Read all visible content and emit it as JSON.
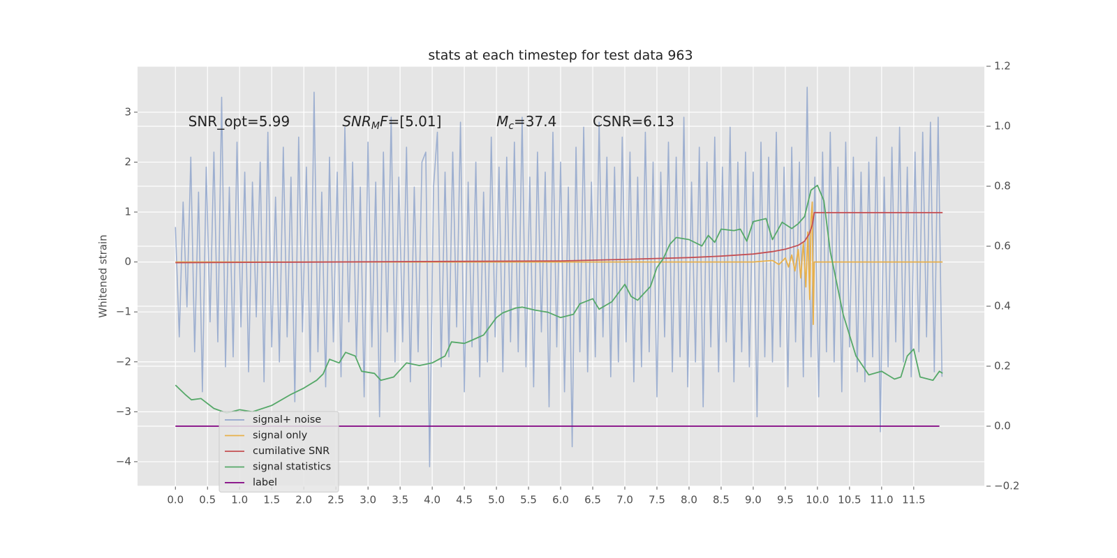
{
  "chart_data": {
    "type": "line",
    "title": "stats at each timestep for test data 963",
    "y_label": "Whitened strain",
    "annotations": [
      [
        {
          "text": "SNR_opt=5.99"
        }
      ],
      [
        {
          "text": "SNR",
          "italic": true
        },
        {
          "text": "M",
          "italic": true,
          "sub": true
        },
        {
          "text": "F",
          "italic": true
        },
        {
          "text": "=[5.01]"
        }
      ],
      [
        {
          "text": "M",
          "italic": true
        },
        {
          "text": "c",
          "italic": true,
          "sub": true
        },
        {
          "text": "=37.4"
        }
      ],
      [
        {
          "text": "CSNR=6.13"
        }
      ]
    ],
    "xlim": [
      -0.59,
      12.6
    ],
    "xticks": [
      {
        "value": 0,
        "label": "0.0"
      },
      0.5,
      {
        "value": 1,
        "label": "1.0"
      },
      1.5,
      {
        "value": 2,
        "label": "2.0"
      },
      2.5,
      {
        "value": 3,
        "label": "3.0"
      },
      3.5,
      {
        "value": 4,
        "label": "4.0"
      },
      4.5,
      {
        "value": 5,
        "label": "5.0"
      },
      5.5,
      {
        "value": 6,
        "label": "6.0"
      },
      6.5,
      {
        "value": 7,
        "label": "7.0"
      },
      7.5,
      {
        "value": 8,
        "label": "8.0"
      },
      8.5,
      {
        "value": 9,
        "label": "9.0"
      },
      9.5,
      {
        "value": 10,
        "label": "10.0"
      },
      10.5,
      {
        "value": 11,
        "label": "11.0"
      },
      11.5
    ],
    "ylim": [
      -4.49,
      3.92
    ],
    "yticks": [
      {
        "value": -4,
        "label": "−4"
      },
      {
        "value": -3,
        "label": "−3"
      },
      {
        "value": -2,
        "label": "−2"
      },
      {
        "value": -1,
        "label": "−1"
      },
      0,
      1,
      2,
      3
    ],
    "y2lim": [
      -0.2,
      1.2
    ],
    "y2ticks": [
      {
        "value": -0.2,
        "label": "−0.2"
      },
      {
        "value": 0,
        "label": "0.0"
      },
      0.2,
      0.4,
      0.6,
      0.8,
      {
        "value": 1,
        "label": "1.0"
      },
      1.2
    ],
    "grid": true,
    "legend": "lower left",
    "series": [
      {
        "name": "signal+ noise",
        "color": "#91a6cc",
        "x": [
          0,
          0.06,
          0.12,
          0.18,
          0.24,
          0.3,
          0.36,
          0.42,
          0.48,
          0.54,
          0.6,
          0.66,
          0.72,
          0.78,
          0.84,
          0.9,
          0.96,
          1.02,
          1.08,
          1.14,
          1.2,
          1.26,
          1.32,
          1.38,
          1.44,
          1.5,
          1.56,
          1.62,
          1.68,
          1.74,
          1.8,
          1.86,
          1.92,
          1.98,
          2.04,
          2.1,
          2.16,
          2.22,
          2.28,
          2.34,
          2.4,
          2.46,
          2.52,
          2.58,
          2.64,
          2.7,
          2.76,
          2.82,
          2.88,
          2.94,
          3,
          3.06,
          3.12,
          3.18,
          3.24,
          3.3,
          3.36,
          3.42,
          3.48,
          3.54,
          3.6,
          3.66,
          3.72,
          3.78,
          3.84,
          3.9,
          3.96,
          4.02,
          4.08,
          4.14,
          4.2,
          4.26,
          4.32,
          4.38,
          4.44,
          4.5,
          4.56,
          4.62,
          4.68,
          4.74,
          4.8,
          4.86,
          4.92,
          4.98,
          5.04,
          5.1,
          5.16,
          5.22,
          5.28,
          5.34,
          5.4,
          5.46,
          5.52,
          5.58,
          5.64,
          5.7,
          5.76,
          5.82,
          5.88,
          5.94,
          6,
          6.06,
          6.12,
          6.18,
          6.24,
          6.3,
          6.36,
          6.42,
          6.48,
          6.54,
          6.6,
          6.66,
          6.72,
          6.78,
          6.84,
          6.9,
          6.96,
          7.02,
          7.08,
          7.14,
          7.2,
          7.26,
          7.32,
          7.38,
          7.44,
          7.5,
          7.56,
          7.62,
          7.68,
          7.74,
          7.8,
          7.86,
          7.92,
          7.98,
          8.04,
          8.1,
          8.16,
          8.22,
          8.28,
          8.34,
          8.4,
          8.46,
          8.52,
          8.58,
          8.64,
          8.7,
          8.76,
          8.82,
          8.88,
          8.94,
          9,
          9.06,
          9.12,
          9.18,
          9.24,
          9.3,
          9.36,
          9.42,
          9.48,
          9.54,
          9.6,
          9.66,
          9.72,
          9.78,
          9.84,
          9.9,
          9.96,
          10.02,
          10.08,
          10.14,
          10.2,
          10.26,
          10.32,
          10.38,
          10.44,
          10.5,
          10.56,
          10.62,
          10.68,
          10.74,
          10.8,
          10.86,
          10.92,
          10.98,
          11.04,
          11.1,
          11.16,
          11.22,
          11.28,
          11.34,
          11.4,
          11.46,
          11.52,
          11.58,
          11.64,
          11.7,
          11.76,
          11.82,
          11.88,
          11.94
        ],
        "values": [
          0.7,
          -1.5,
          1.2,
          -0.9,
          2.1,
          -1.8,
          1.4,
          -2.6,
          1.9,
          -1.2,
          2.2,
          -1.6,
          3.3,
          -2.1,
          1.5,
          -1.9,
          2.4,
          -1.3,
          1.8,
          -2.2,
          1.6,
          -1.1,
          2.0,
          -2.4,
          2.6,
          -1.7,
          1.3,
          -2.0,
          2.3,
          -1.5,
          1.7,
          -2.8,
          2.5,
          -1.4,
          1.9,
          -2.2,
          3.4,
          -1.8,
          1.4,
          -2.5,
          2.1,
          -1.6,
          1.8,
          -2.3,
          2.7,
          -1.2,
          2.0,
          -1.9,
          1.5,
          -2.7,
          2.4,
          -1.7,
          1.6,
          -3.1,
          2.2,
          -1.4,
          2.9,
          -2.0,
          1.7,
          -1.6,
          2.3,
          -2.4,
          1.5,
          -1.8,
          2.0,
          2.2,
          -4.1,
          1.5,
          2.6,
          -2.1,
          1.8,
          -1.9,
          2.2,
          -1.3,
          2.8,
          -2.6,
          1.6,
          -1.7,
          2.0,
          -2.3,
          1.4,
          -2.0,
          2.5,
          -1.5,
          1.9,
          -2.2,
          2.1,
          -1.6,
          2.4,
          -1.8,
          2.9,
          -2.1,
          1.7,
          -2.5,
          2.2,
          -1.4,
          1.8,
          -2.9,
          2.6,
          -1.7,
          2.0,
          -2.6,
          1.5,
          -3.7,
          2.3,
          -1.8,
          2.7,
          -2.2,
          1.6,
          -1.9,
          2.8,
          -1.5,
          2.1,
          -2.3,
          1.9,
          -2.0,
          2.5,
          -1.6,
          2.2,
          -2.4,
          1.7,
          -2.1,
          2.6,
          -1.8,
          2.0,
          -2.7,
          1.8,
          -1.5,
          2.4,
          -2.2,
          2.1,
          -1.9,
          2.9,
          -2.5,
          1.6,
          -2.0,
          2.3,
          -2.9,
          2.0,
          -1.7,
          2.5,
          -2.2,
          1.9,
          -1.6,
          2.7,
          -2.4,
          2.0,
          -1.8,
          2.2,
          -2.1,
          1.8,
          -3.1,
          2.4,
          -1.9,
          2.1,
          -2.0,
          2.6,
          -1.7,
          1.9,
          -2.5,
          2.3,
          -1.6,
          2.0,
          -2.3,
          3.5,
          -1.9,
          1.7,
          -2.7,
          2.2,
          -1.8,
          2.6,
          -2.0,
          1.9,
          -2.6,
          2.4,
          -1.7,
          2.1,
          -2.2,
          1.8,
          -2.4,
          2.0,
          -1.9,
          2.5,
          -3.4,
          1.7,
          -2.1,
          2.3,
          -1.6,
          2.7,
          -2.0,
          1.9,
          -2.3,
          2.2,
          -1.8,
          2.6,
          -1.5,
          2.8,
          -2.2,
          2.9,
          -2.3
        ]
      },
      {
        "name": "signal only",
        "color": "#e8b04a",
        "x": [
          0,
          9.0,
          9.3,
          9.4,
          9.5,
          9.55,
          9.6,
          9.65,
          9.7,
          9.74,
          9.78,
          9.82,
          9.85,
          9.88,
          9.9,
          9.92,
          9.935,
          9.95,
          11.95
        ],
        "values": [
          0,
          0,
          0.03,
          -0.05,
          0.08,
          -0.1,
          0.14,
          -0.18,
          0.25,
          -0.32,
          0.4,
          -0.5,
          0.6,
          -0.75,
          0.85,
          1.2,
          -1.25,
          0,
          0
        ]
      },
      {
        "name": "cumilative SNR",
        "color": "#c44e52",
        "axis": "y2",
        "x": [
          0,
          2,
          4,
          6,
          7,
          8,
          8.5,
          9,
          9.3,
          9.5,
          9.7,
          9.8,
          9.87,
          9.92,
          9.95,
          11.95
        ],
        "values": [
          0.545,
          0.547,
          0.549,
          0.551,
          0.556,
          0.562,
          0.567,
          0.574,
          0.582,
          0.59,
          0.603,
          0.617,
          0.64,
          0.67,
          0.712,
          0.712
        ]
      },
      {
        "name": "signal statistics",
        "color": "#55a868",
        "axis": "y2",
        "x": [
          0,
          0.15,
          0.25,
          0.4,
          0.6,
          0.8,
          1.0,
          1.2,
          1.5,
          1.8,
          2.0,
          2.2,
          2.3,
          2.4,
          2.55,
          2.65,
          2.8,
          2.9,
          3.1,
          3.2,
          3.4,
          3.6,
          3.8,
          4.0,
          4.2,
          4.3,
          4.5,
          4.6,
          4.8,
          5.0,
          5.1,
          5.3,
          5.4,
          5.6,
          5.8,
          6.0,
          6.2,
          6.3,
          6.5,
          6.6,
          6.8,
          7.0,
          7.1,
          7.2,
          7.4,
          7.5,
          7.6,
          7.7,
          7.8,
          8.0,
          8.2,
          8.3,
          8.4,
          8.5,
          8.7,
          8.8,
          8.9,
          9.0,
          9.2,
          9.3,
          9.45,
          9.6,
          9.7,
          9.8,
          9.9,
          10.0,
          10.1,
          10.2,
          10.4,
          10.6,
          10.8,
          11.0,
          11.2,
          11.3,
          11.4,
          11.5,
          11.6,
          11.8,
          11.9,
          11.95
        ],
        "values": [
          0.137,
          0.106,
          0.088,
          0.092,
          0.059,
          0.044,
          0.055,
          0.048,
          0.069,
          0.106,
          0.127,
          0.153,
          0.174,
          0.223,
          0.211,
          0.246,
          0.234,
          0.183,
          0.176,
          0.153,
          0.164,
          0.211,
          0.202,
          0.211,
          0.234,
          0.281,
          0.276,
          0.285,
          0.304,
          0.362,
          0.378,
          0.394,
          0.397,
          0.387,
          0.38,
          0.362,
          0.373,
          0.408,
          0.425,
          0.39,
          0.415,
          0.473,
          0.432,
          0.42,
          0.466,
          0.529,
          0.559,
          0.606,
          0.629,
          0.622,
          0.601,
          0.636,
          0.613,
          0.657,
          0.652,
          0.657,
          0.617,
          0.682,
          0.692,
          0.622,
          0.68,
          0.659,
          0.675,
          0.699,
          0.787,
          0.803,
          0.752,
          0.582,
          0.373,
          0.234,
          0.171,
          0.183,
          0.157,
          0.164,
          0.234,
          0.257,
          0.164,
          0.153,
          0.183,
          0.176
        ]
      },
      {
        "name": "label",
        "color": "#800080",
        "axis": "y2",
        "x": [
          0,
          11.9
        ],
        "values": [
          0,
          0
        ]
      }
    ]
  }
}
